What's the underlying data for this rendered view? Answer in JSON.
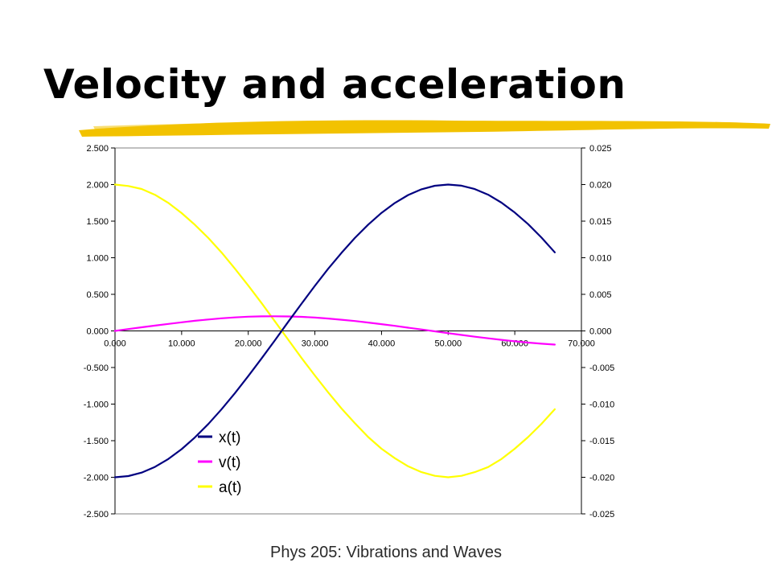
{
  "slide": {
    "title": "Velocity and acceleration",
    "footer": "Phys 205: Vibrations and Waves"
  },
  "colors": {
    "x": "#000080",
    "v": "#FF00FF",
    "a": "#FFFF00",
    "brush": "#F2C200"
  },
  "chart_data": {
    "type": "line",
    "legend_position": "bottom-left-inside",
    "grid": false,
    "x_range": [
      0,
      70
    ],
    "x_ticks": [
      "0.000",
      "10.000",
      "20.000",
      "30.000",
      "40.000",
      "50.000",
      "60.000",
      "70.000"
    ],
    "y_left_range": [
      -2.5,
      2.5
    ],
    "y_left_ticks": [
      "2.500",
      "2.000",
      "1.500",
      "1.000",
      "0.500",
      "0.000",
      "-0.500",
      "-1.000",
      "-1.500",
      "-2.000",
      "-2.500"
    ],
    "y_right_range": [
      -0.025,
      0.025
    ],
    "y_right_ticks": [
      "0.025",
      "0.020",
      "0.015",
      "0.010",
      "0.005",
      "0.000",
      "-0.005",
      "-0.010",
      "-0.015",
      "-0.020",
      "-0.025"
    ],
    "x": [
      0,
      2,
      4,
      6,
      8,
      10,
      12,
      14,
      16,
      18,
      20,
      22,
      24,
      26,
      28,
      30,
      32,
      34,
      36,
      38,
      40,
      42,
      44,
      46,
      48,
      50,
      52,
      54,
      56,
      58,
      60,
      62,
      64,
      66
    ],
    "series": [
      {
        "name": "x(t)",
        "axis": "left",
        "values": [
          -2.0,
          -1.984,
          -1.936,
          -1.858,
          -1.75,
          -1.615,
          -1.455,
          -1.272,
          -1.069,
          -0.851,
          -0.618,
          -0.376,
          -0.127,
          0.124,
          0.373,
          0.616,
          0.849,
          1.067,
          1.27,
          1.453,
          1.613,
          1.748,
          1.857,
          1.935,
          1.983,
          2.0,
          1.985,
          1.938,
          1.861,
          1.753,
          1.618,
          1.459,
          1.276,
          1.074
        ]
      },
      {
        "name": "v(t)",
        "axis": "left",
        "values": [
          0.0,
          0.025,
          0.049,
          0.073,
          0.096,
          0.118,
          0.138,
          0.156,
          0.172,
          0.185,
          0.195,
          0.199,
          0.2,
          0.198,
          0.192,
          0.182,
          0.169,
          0.153,
          0.135,
          0.114,
          0.092,
          0.069,
          0.044,
          0.02,
          -0.006,
          -0.031,
          -0.055,
          -0.079,
          -0.101,
          -0.122,
          -0.142,
          -0.159,
          -0.175,
          -0.187
        ]
      },
      {
        "name": "a(t)",
        "axis": "right",
        "values": [
          0.02,
          0.0198,
          0.0194,
          0.0186,
          0.0175,
          0.0161,
          0.0145,
          0.0127,
          0.0107,
          0.0085,
          0.0062,
          0.0038,
          0.0013,
          -0.0012,
          -0.0037,
          -0.0061,
          -0.0084,
          -0.0106,
          -0.0126,
          -0.0145,
          -0.0161,
          -0.0174,
          -0.0185,
          -0.0193,
          -0.0198,
          -0.02,
          -0.0198,
          -0.0193,
          -0.0186,
          -0.0175,
          -0.0161,
          -0.0145,
          -0.0127,
          -0.0107
        ]
      }
    ]
  }
}
